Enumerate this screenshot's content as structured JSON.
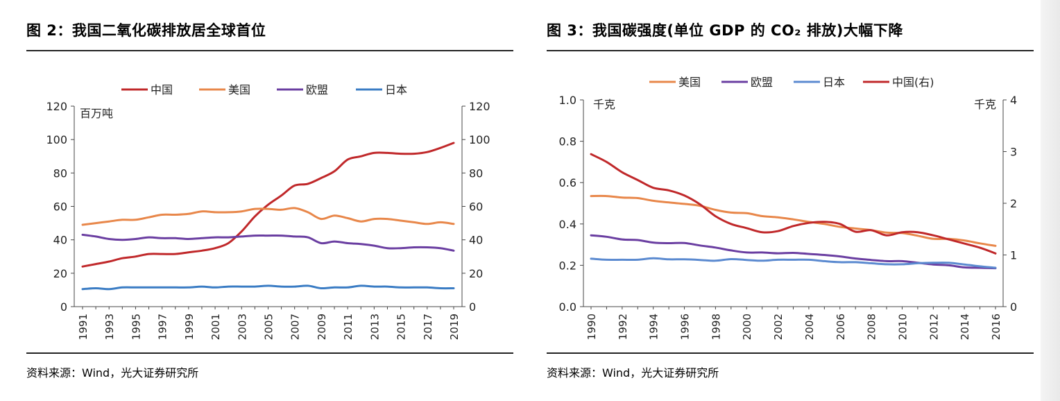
{
  "figures": [
    {
      "title": "图 2：我国二氧化碳排放居全球首位",
      "source": "资料来源：Wind，光大证券研究所",
      "chart_data": {
        "type": "line",
        "title": "图 2：我国二氧化碳排放居全球首位",
        "unit_label": "百万吨",
        "x": [
          1991,
          1992,
          1993,
          1994,
          1995,
          1996,
          1997,
          1998,
          1999,
          2000,
          2001,
          2002,
          2003,
          2004,
          2005,
          2006,
          2007,
          2008,
          2009,
          2010,
          2011,
          2012,
          2013,
          2014,
          2015,
          2016,
          2017,
          2018,
          2019
        ],
        "x_tick_labels": [
          "1991",
          "1993",
          "1995",
          "1997",
          "1999",
          "2001",
          "2003",
          "2005",
          "2007",
          "2009",
          "2011",
          "2013",
          "2015",
          "2017",
          "2019"
        ],
        "y_ticks": [
          0,
          20,
          40,
          60,
          80,
          100,
          120
        ],
        "ylim": [
          0,
          120
        ],
        "y2lim": [
          0,
          120
        ],
        "legend_position": "top-center",
        "series": [
          {
            "name": "中国",
            "color": "#c0282a",
            "axis": "left",
            "values": [
              24,
              25.5,
              27,
              29,
              30,
              31.5,
              31.5,
              31.5,
              32.5,
              33.5,
              35,
              38,
              45,
              54,
              61,
              66.5,
              72.5,
              73.5,
              77,
              81,
              88,
              90,
              92,
              92,
              91.5,
              91.5,
              92.5,
              95,
              98
            ]
          },
          {
            "name": "美国",
            "color": "#e8874a",
            "axis": "left",
            "values": [
              49,
              50,
              51,
              52,
              52,
              53.5,
              55,
              55,
              55.5,
              57,
              56.5,
              56.5,
              57,
              58.5,
              58.5,
              58,
              59,
              56.5,
              52.5,
              54.5,
              53,
              51,
              52.5,
              52.5,
              51.5,
              50.5,
              49.5,
              50.5,
              49.5
            ]
          },
          {
            "name": "欧盟",
            "color": "#6a3ea1",
            "axis": "left",
            "values": [
              43,
              42,
              40.5,
              40,
              40.5,
              41.5,
              41,
              41,
              40.5,
              41,
              41.5,
              41.5,
              42,
              42.5,
              42.5,
              42.5,
              42,
              41.5,
              38,
              39,
              38,
              37.5,
              36.5,
              35,
              35,
              35.5,
              35.5,
              35,
              33.5
            ]
          },
          {
            "name": "日本",
            "color": "#3a7cc4",
            "axis": "left",
            "values": [
              10.5,
              11,
              10.5,
              11.5,
              11.5,
              11.5,
              11.5,
              11.5,
              11.5,
              12,
              11.5,
              12,
              12,
              12,
              12.5,
              12,
              12,
              12.5,
              11,
              11.5,
              11.5,
              12.5,
              12,
              12,
              11.5,
              11.5,
              11.5,
              11,
              11
            ]
          }
        ]
      }
    },
    {
      "title": "图 3：我国碳强度(单位 GDP 的 CO₂ 排放)大幅下降",
      "source": "资料来源：Wind，光大证券研究所",
      "chart_data": {
        "type": "line",
        "title": "图 3：我国碳强度(单位 GDP 的 CO₂ 排放)大幅下降",
        "unit_label_left": "千克",
        "unit_label_right": "千克",
        "x": [
          1990,
          1991,
          1992,
          1993,
          1994,
          1995,
          1996,
          1997,
          1998,
          1999,
          2000,
          2001,
          2002,
          2003,
          2004,
          2005,
          2006,
          2007,
          2008,
          2009,
          2010,
          2011,
          2012,
          2013,
          2014,
          2015,
          2016
        ],
        "x_tick_labels": [
          "1990",
          "1992",
          "1994",
          "1996",
          "1998",
          "2000",
          "2002",
          "2004",
          "2006",
          "2008",
          "2010",
          "2012",
          "2014",
          "2016"
        ],
        "y_ticks": [
          0.0,
          0.2,
          0.4,
          0.6,
          0.8,
          1.0
        ],
        "y_tick_labels": [
          "0.0",
          "0.2",
          "0.4",
          "0.6",
          "0.8",
          "1.0"
        ],
        "y2_ticks": [
          0,
          1,
          2,
          3,
          4
        ],
        "ylim": [
          0,
          1.0
        ],
        "y2lim": [
          0,
          4
        ],
        "legend_position": "top-center",
        "series": [
          {
            "name": "美国",
            "color": "#e8874a",
            "axis": "left",
            "values": [
              0.535,
              0.535,
              0.528,
              0.525,
              0.512,
              0.504,
              0.497,
              0.488,
              0.468,
              0.455,
              0.452,
              0.438,
              0.432,
              0.422,
              0.41,
              0.4,
              0.386,
              0.378,
              0.37,
              0.358,
              0.356,
              0.343,
              0.328,
              0.328,
              0.32,
              0.306,
              0.294
            ]
          },
          {
            "name": "欧盟",
            "color": "#6a3ea1",
            "axis": "left",
            "values": [
              0.345,
              0.338,
              0.325,
              0.322,
              0.31,
              0.307,
              0.308,
              0.296,
              0.286,
              0.272,
              0.262,
              0.262,
              0.258,
              0.26,
              0.255,
              0.25,
              0.243,
              0.233,
              0.226,
              0.22,
              0.22,
              0.212,
              0.204,
              0.2,
              0.19,
              0.188,
              0.186
            ]
          },
          {
            "name": "日本",
            "color": "#5b8ad0",
            "axis": "left",
            "values": [
              0.232,
              0.227,
              0.227,
              0.227,
              0.234,
              0.229,
              0.229,
              0.226,
              0.222,
              0.23,
              0.226,
              0.222,
              0.227,
              0.227,
              0.227,
              0.22,
              0.215,
              0.215,
              0.21,
              0.205,
              0.205,
              0.21,
              0.212,
              0.212,
              0.204,
              0.195,
              0.188
            ]
          },
          {
            "name": "中国(右)",
            "color": "#c0282a",
            "axis": "right",
            "values": [
              2.95,
              2.8,
              2.6,
              2.45,
              2.3,
              2.25,
              2.15,
              1.98,
              1.75,
              1.6,
              1.52,
              1.44,
              1.46,
              1.56,
              1.62,
              1.64,
              1.6,
              1.45,
              1.48,
              1.38,
              1.44,
              1.44,
              1.38,
              1.3,
              1.22,
              1.14,
              1.03
            ]
          }
        ]
      }
    }
  ]
}
